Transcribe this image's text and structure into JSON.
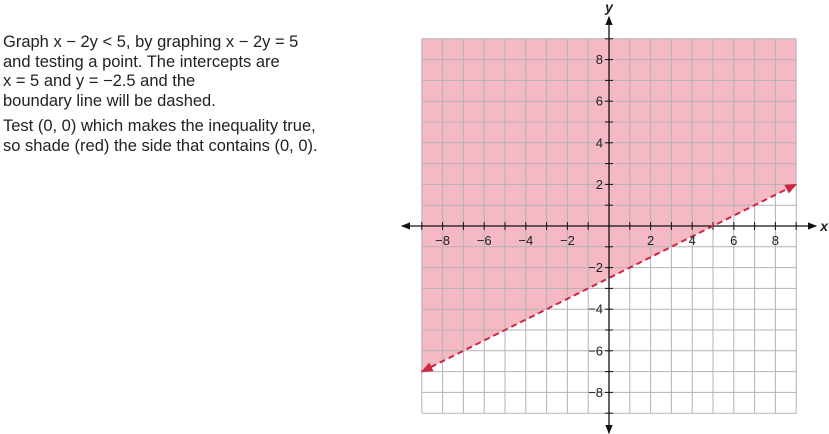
{
  "text": {
    "paragraph1_lines": [
      "Graph x − 2y < 5, by graphing x − 2y = 5",
      "and testing a point. The intercepts are",
      "x = 5 and y = −2.5 and the",
      "boundary line will be dashed."
    ],
    "paragraph2_lines": [
      "Test (0, 0) which makes the inequality true,",
      "so shade (red) the side that contains (0, 0)."
    ]
  },
  "colors": {
    "shade": "#f4b9c5",
    "grid": "#b3b3b3",
    "boundary": "#d0253f",
    "axis": "#111111"
  },
  "chart_data": {
    "type": "line",
    "xlabel": "x",
    "ylabel": "y",
    "xlim": [
      -9,
      9
    ],
    "ylim": [
      -9,
      9
    ],
    "grid": true,
    "x_ticks": [
      -8,
      -6,
      -4,
      -2,
      2,
      4,
      6,
      8
    ],
    "y_ticks": [
      8,
      6,
      4,
      2,
      -2,
      -4,
      -6,
      -8
    ],
    "x_tick_labels": [
      "−8",
      "−6",
      "−4",
      "−2",
      "2",
      "4",
      "6",
      "8"
    ],
    "y_tick_labels": [
      "8",
      "6",
      "4",
      "2",
      "−2",
      "−4",
      "−6",
      "−8"
    ],
    "series": [
      {
        "style": "dashed",
        "x": [
          -9,
          9
        ],
        "y": [
          -7,
          2
        ]
      }
    ],
    "shaded_region": {
      "inequality": "x − 2y < 5",
      "side": "above"
    }
  }
}
